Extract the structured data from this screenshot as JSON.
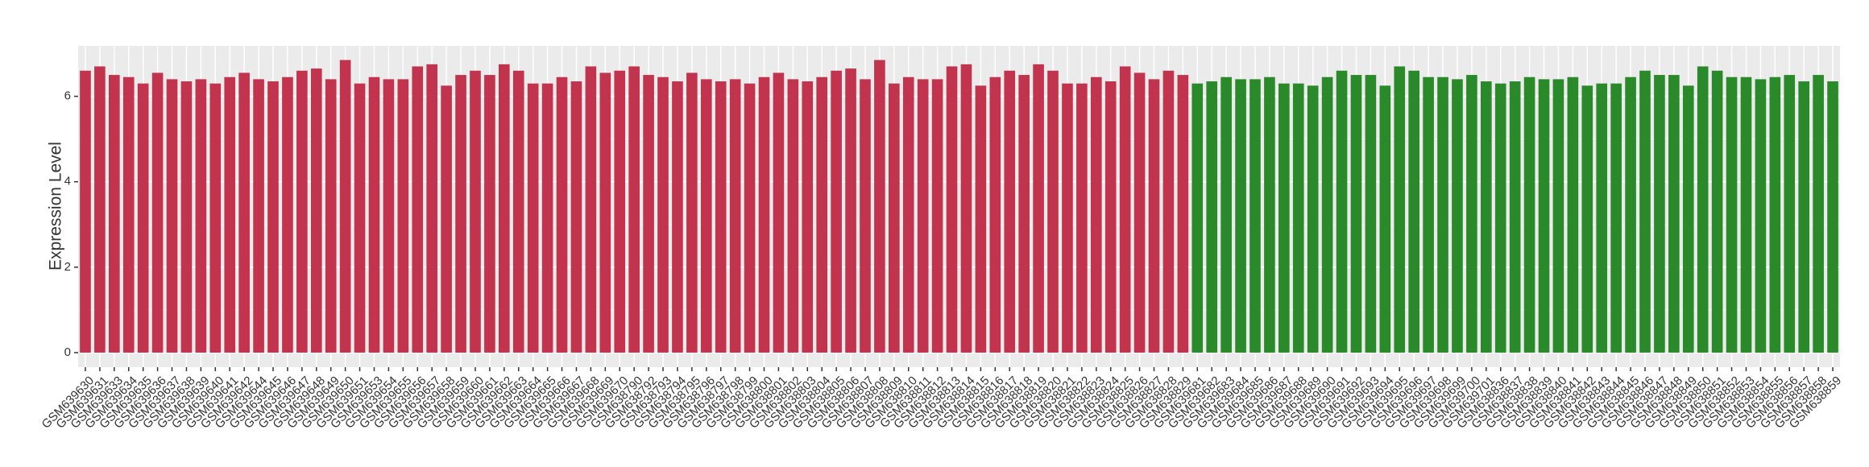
{
  "chart_data": {
    "type": "bar",
    "y_label": "Expression Level",
    "ylim": [
      -0.34,
      7.18
    ],
    "yticks": [
      0,
      2,
      4,
      6
    ],
    "grid": true,
    "series": [
      {
        "color": "#c2334d",
        "categories": [
          "GSM639630",
          "GSM639631",
          "GSM639633",
          "GSM639634",
          "GSM639635",
          "GSM639636",
          "GSM639637",
          "GSM639638",
          "GSM639639",
          "GSM639640",
          "GSM639641",
          "GSM639642",
          "GSM639644",
          "GSM639645",
          "GSM639646",
          "GSM639647",
          "GSM639648",
          "GSM639649",
          "GSM639650",
          "GSM639651",
          "GSM639653",
          "GSM639654",
          "GSM639655",
          "GSM639656",
          "GSM639657",
          "GSM639658",
          "GSM639659",
          "GSM639660",
          "GSM639661",
          "GSM639662",
          "GSM639663",
          "GSM639664",
          "GSM639665",
          "GSM639666",
          "GSM639667",
          "GSM639668",
          "GSM639669",
          "GSM639670",
          "GSM638790",
          "GSM638792",
          "GSM638793",
          "GSM638794",
          "GSM638795",
          "GSM638796",
          "GSM638797",
          "GSM638798",
          "GSM638799",
          "GSM638800",
          "GSM638801",
          "GSM638802",
          "GSM638803",
          "GSM638804",
          "GSM638805",
          "GSM638806",
          "GSM638807",
          "GSM638808",
          "GSM638809",
          "GSM638810",
          "GSM638811",
          "GSM638812",
          "GSM638813",
          "GSM638814",
          "GSM638815",
          "GSM638816",
          "GSM638817",
          "GSM638818",
          "GSM638819",
          "GSM638820",
          "GSM638821",
          "GSM638822",
          "GSM638823",
          "GSM638824",
          "GSM638825",
          "GSM638826",
          "GSM638827",
          "GSM638828",
          "GSM638829"
        ],
        "values": [
          6.6,
          6.7,
          6.5,
          6.45,
          6.3,
          6.55,
          6.4,
          6.35,
          6.4,
          6.3,
          6.45,
          6.55,
          6.4,
          6.35,
          6.45,
          6.6,
          6.65,
          6.4,
          6.85,
          6.3,
          6.45,
          6.4,
          6.4,
          6.7,
          6.75,
          6.25,
          6.5,
          6.6,
          6.5,
          6.75,
          6.6,
          6.3,
          6.3,
          6.45,
          6.35,
          6.7,
          6.55,
          6.6,
          6.7,
          6.5,
          6.45,
          6.35,
          6.55,
          6.4,
          6.35,
          6.4,
          6.3,
          6.45,
          6.55,
          6.4,
          6.35,
          6.45,
          6.6,
          6.65,
          6.4,
          6.85,
          6.3,
          6.45,
          6.4,
          6.4,
          6.7,
          6.75,
          6.25,
          6.45,
          6.6,
          6.5,
          6.75,
          6.6,
          6.3,
          6.3,
          6.45,
          6.35,
          6.7,
          6.55,
          6.4,
          6.6,
          6.5
        ]
      },
      {
        "color": "#2a8a2a",
        "categories": [
          "GSM639681",
          "GSM639682",
          "GSM639683",
          "GSM639684",
          "GSM639685",
          "GSM639686",
          "GSM639687",
          "GSM639688",
          "GSM639689",
          "GSM639690",
          "GSM639691",
          "GSM639692",
          "GSM639693",
          "GSM639694",
          "GSM639695",
          "GSM639696",
          "GSM639697",
          "GSM639698",
          "GSM639699",
          "GSM639700",
          "GSM639701",
          "GSM638836",
          "GSM638837",
          "GSM638838",
          "GSM638839",
          "GSM638840",
          "GSM638841",
          "GSM638842",
          "GSM638843",
          "GSM638844",
          "GSM638845",
          "GSM638846",
          "GSM638847",
          "GSM638848",
          "GSM638849",
          "GSM638850",
          "GSM638851",
          "GSM638852",
          "GSM638853",
          "GSM638854",
          "GSM638855",
          "GSM638856",
          "GSM638857",
          "GSM638858",
          "GSM638859"
        ],
        "values": [
          6.3,
          6.35,
          6.45,
          6.4,
          6.4,
          6.45,
          6.3,
          6.3,
          6.25,
          6.45,
          6.6,
          6.5,
          6.5,
          6.25,
          6.7,
          6.6,
          6.45,
          6.45,
          6.4,
          6.5,
          6.35,
          6.3,
          6.35,
          6.45,
          6.4,
          6.4,
          6.45,
          6.25,
          6.3,
          6.3,
          6.45,
          6.6,
          6.5,
          6.5,
          6.25,
          6.7,
          6.6,
          6.45,
          6.45,
          6.4,
          6.45,
          6.5,
          6.35,
          6.5,
          6.35
        ]
      }
    ]
  }
}
